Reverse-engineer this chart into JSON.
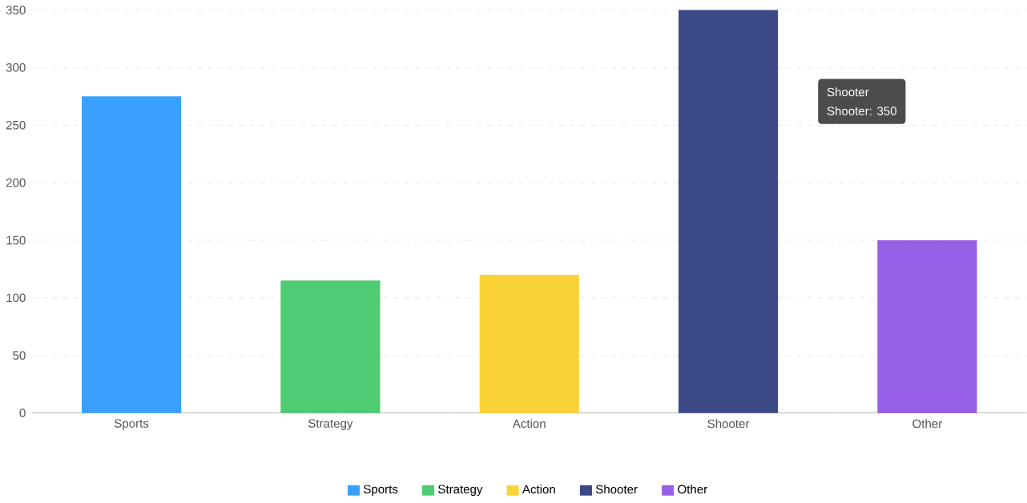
{
  "chart_data": {
    "type": "bar",
    "categories": [
      "Sports",
      "Strategy",
      "Action",
      "Shooter",
      "Other"
    ],
    "series": [
      {
        "name": "Sports",
        "color": "#3aa0ff",
        "values": [
          275,
          null,
          null,
          null,
          null
        ]
      },
      {
        "name": "Strategy",
        "color": "#4ecb73",
        "values": [
          null,
          115,
          null,
          null,
          null
        ]
      },
      {
        "name": "Action",
        "color": "#fad337",
        "values": [
          null,
          null,
          120,
          null,
          null
        ]
      },
      {
        "name": "Shooter",
        "color": "#3b4a86",
        "values": [
          null,
          null,
          null,
          350,
          null
        ]
      },
      {
        "name": "Other",
        "color": "#975fe5",
        "values": [
          null,
          null,
          null,
          null,
          150
        ]
      }
    ],
    "ylim": [
      0,
      350
    ],
    "yticks": [
      0,
      50,
      100,
      150,
      200,
      250,
      300,
      350
    ],
    "grid": "y",
    "legend": "bottom",
    "annotations": [
      "Shooter",
      "Shooter: 350"
    ]
  }
}
